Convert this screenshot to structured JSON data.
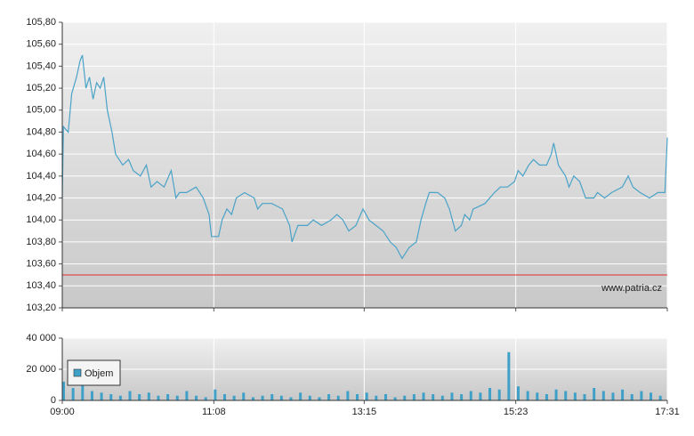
{
  "chart_data": [
    {
      "type": "line",
      "x": [
        "09:00",
        "09:01",
        "09:05",
        "09:08",
        "09:12",
        "09:15",
        "09:17",
        "09:20",
        "09:23",
        "09:26",
        "09:29",
        "09:32",
        "09:35",
        "09:38",
        "09:42",
        "09:45",
        "09:51",
        "09:56",
        "10:00",
        "10:06",
        "10:11",
        "10:15",
        "10:20",
        "10:26",
        "10:32",
        "10:36",
        "10:39",
        "10:45",
        "10:53",
        "10:59",
        "11:04",
        "11:06",
        "11:12",
        "11:15",
        "11:19",
        "11:23",
        "11:27",
        "11:34",
        "11:42",
        "11:45",
        "11:49",
        "11:57",
        "12:06",
        "12:12",
        "12:14",
        "12:19",
        "12:27",
        "12:32",
        "12:39",
        "12:47",
        "12:52",
        "12:57",
        "13:02",
        "13:08",
        "13:14",
        "13:19",
        "13:25",
        "13:31",
        "13:37",
        "13:42",
        "13:47",
        "13:53",
        "13:59",
        "14:03",
        "14:07",
        "14:10",
        "14:17",
        "14:23",
        "14:27",
        "14:32",
        "14:37",
        "14:40",
        "14:44",
        "14:47",
        "14:57",
        "15:05",
        "15:10",
        "15:16",
        "15:22",
        "15:25",
        "15:29",
        "15:34",
        "15:38",
        "15:43",
        "15:49",
        "15:53",
        "15:55",
        "15:59",
        "16:05",
        "16:08",
        "16:12",
        "16:17",
        "16:22",
        "16:29",
        "16:32",
        "16:38",
        "16:44",
        "16:53",
        "16:58",
        "17:02",
        "17:08",
        "17:16",
        "17:23",
        "17:29",
        "17:31"
      ],
      "series": [
        {
          "color": "#4aa3c8",
          "values": [
            104.2,
            104.85,
            104.8,
            105.15,
            105.3,
            105.45,
            105.5,
            105.2,
            105.3,
            105.1,
            105.25,
            105.2,
            105.3,
            105.0,
            104.8,
            104.6,
            104.5,
            104.55,
            104.45,
            104.4,
            104.5,
            104.3,
            104.35,
            104.3,
            104.45,
            104.2,
            104.25,
            104.25,
            104.3,
            104.2,
            104.05,
            103.85,
            103.85,
            104.0,
            104.1,
            104.05,
            104.2,
            104.25,
            104.2,
            104.1,
            104.15,
            104.15,
            104.1,
            103.95,
            103.8,
            103.95,
            103.95,
            104.0,
            103.95,
            104.0,
            104.05,
            104.0,
            103.9,
            103.95,
            104.1,
            104.0,
            103.95,
            103.9,
            103.8,
            103.75,
            103.65,
            103.75,
            103.8,
            104.0,
            104.15,
            104.25,
            104.25,
            104.2,
            104.1,
            103.9,
            103.95,
            104.05,
            104.0,
            104.1,
            104.15,
            104.25,
            104.3,
            104.3,
            104.35,
            104.45,
            104.4,
            104.5,
            104.55,
            104.5,
            104.5,
            104.6,
            104.7,
            104.5,
            104.4,
            104.3,
            104.4,
            104.35,
            104.2,
            104.2,
            104.25,
            104.2,
            104.25,
            104.3,
            104.4,
            104.3,
            104.25,
            104.2,
            104.25,
            104.25,
            104.75
          ]
        }
      ],
      "reference_line": 103.5,
      "reference_color": "#e03030",
      "annotation": "www.patria.cz",
      "xlim": [
        "09:00",
        "17:31"
      ],
      "xticks": [
        "09:00",
        "11:08",
        "13:15",
        "15:23",
        "17:31"
      ],
      "ylim": [
        103.2,
        105.8
      ],
      "yticks": [
        {
          "value": 103.2,
          "label": "103,20"
        },
        {
          "value": 103.4,
          "label": "103,40"
        },
        {
          "value": 103.6,
          "label": "103,60"
        },
        {
          "value": 103.8,
          "label": "103,80"
        },
        {
          "value": 104.0,
          "label": "104,00"
        },
        {
          "value": 104.2,
          "label": "104,20"
        },
        {
          "value": 104.4,
          "label": "104,40"
        },
        {
          "value": 104.6,
          "label": "104,60"
        },
        {
          "value": 104.8,
          "label": "104,80"
        },
        {
          "value": 105.0,
          "label": "105,00"
        },
        {
          "value": 105.2,
          "label": "105,20"
        },
        {
          "value": 105.4,
          "label": "105,40"
        },
        {
          "value": 105.6,
          "label": "105,60"
        },
        {
          "value": 105.8,
          "label": "105,80"
        }
      ],
      "grid": true
    },
    {
      "type": "bar",
      "x": [
        "09:00",
        "09:08",
        "09:16",
        "09:24",
        "09:32",
        "09:40",
        "09:48",
        "09:56",
        "10:04",
        "10:12",
        "10:20",
        "10:28",
        "10:36",
        "10:44",
        "10:52",
        "11:00",
        "11:08",
        "11:16",
        "11:24",
        "11:32",
        "11:40",
        "11:48",
        "11:56",
        "12:04",
        "12:12",
        "12:20",
        "12:28",
        "12:36",
        "12:44",
        "12:52",
        "13:00",
        "13:08",
        "13:16",
        "13:24",
        "13:32",
        "13:40",
        "13:48",
        "13:56",
        "14:04",
        "14:12",
        "14:20",
        "14:28",
        "14:36",
        "14:44",
        "14:52",
        "15:00",
        "15:08",
        "15:16",
        "15:24",
        "15:32",
        "15:40",
        "15:48",
        "15:56",
        "16:04",
        "16:12",
        "16:20",
        "16:28",
        "16:36",
        "16:44",
        "16:52",
        "17:00",
        "17:08",
        "17:16",
        "17:24"
      ],
      "series": [
        {
          "name": "Objem",
          "color": "#3fa0c8",
          "values": [
            12000,
            8000,
            10000,
            6000,
            5000,
            4000,
            3000,
            6000,
            4000,
            5000,
            3000,
            4000,
            3000,
            6000,
            3000,
            2000,
            7000,
            4000,
            3000,
            5000,
            2000,
            3000,
            4000,
            3000,
            2000,
            5000,
            3000,
            2000,
            4000,
            3000,
            6000,
            4000,
            5000,
            3000,
            4000,
            2000,
            3000,
            4000,
            5000,
            4000,
            3000,
            5000,
            4000,
            6000,
            5000,
            8000,
            7000,
            31000,
            9000,
            6000,
            5000,
            4000,
            7000,
            6000,
            5000,
            4000,
            8000,
            6000,
            5000,
            7000,
            4000,
            6000,
            5000,
            3000
          ]
        }
      ],
      "xlim": [
        "09:00",
        "17:31"
      ],
      "xticks": [
        "09:00",
        "11:08",
        "13:15",
        "15:23",
        "17:31"
      ],
      "ylim": [
        0,
        40000
      ],
      "yticks": [
        0,
        {
          "value": 20000,
          "label": "20 000"
        },
        {
          "value": 40000,
          "label": "40 000"
        }
      ],
      "grid": true,
      "legend": "top-left"
    }
  ]
}
